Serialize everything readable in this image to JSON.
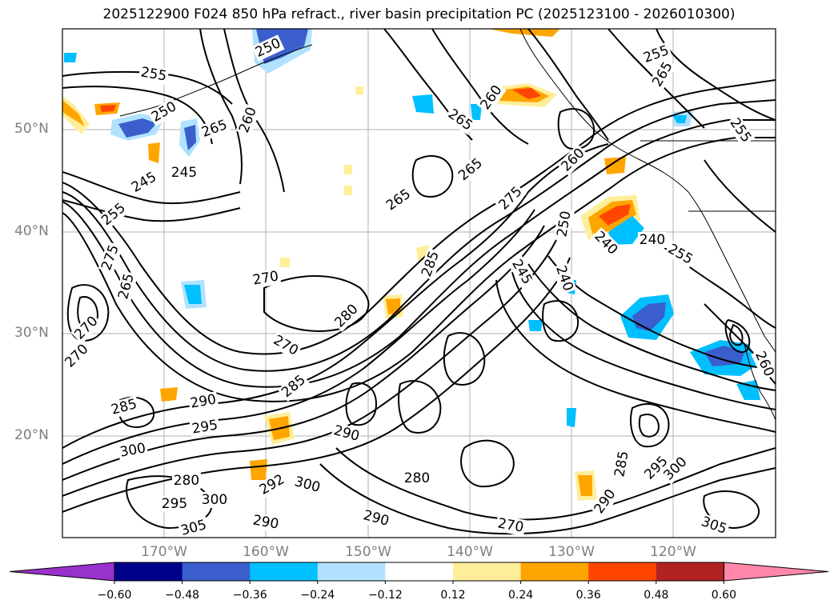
{
  "title": "2025122900 F024 850 hPa refract., river basin precipitation PC (2025123100 - 2026010300)",
  "lat_labels": [
    "50°N",
    "40°N",
    "30°N",
    "20°N"
  ],
  "lon_labels": [
    "170°W",
    "160°W",
    "150°W",
    "140°W",
    "130°W",
    "120°W"
  ],
  "contour_labels": [
    "250",
    "255",
    "250",
    "245",
    "245",
    "255",
    "275",
    "265",
    "270",
    "260",
    "265",
    "270",
    "270",
    "280",
    "285",
    "260",
    "265",
    "265",
    "275",
    "260",
    "250",
    "240",
    "245",
    "240",
    "240",
    "255",
    "255",
    "265",
    "265",
    "255",
    "260",
    "285",
    "290",
    "290",
    "295",
    "300",
    "270",
    "285",
    "280",
    "292",
    "300",
    "295",
    "300",
    "305",
    "290",
    "290",
    "280",
    "270",
    "285",
    "290",
    "295",
    "300",
    "305"
  ],
  "colorbar": {
    "ticks": [
      "−0.60",
      "−0.48",
      "−0.36",
      "−0.24",
      "−0.12",
      "0.12",
      "0.24",
      "0.36",
      "0.48",
      "0.60"
    ],
    "colors": [
      "#9932cc",
      "#00008b",
      "#3a5fcd",
      "#00bfff",
      "#b0e2ff",
      "#ffffff",
      "#ffee99",
      "#ffa500",
      "#ff4500",
      "#b22222",
      "#ff88aa"
    ]
  }
}
